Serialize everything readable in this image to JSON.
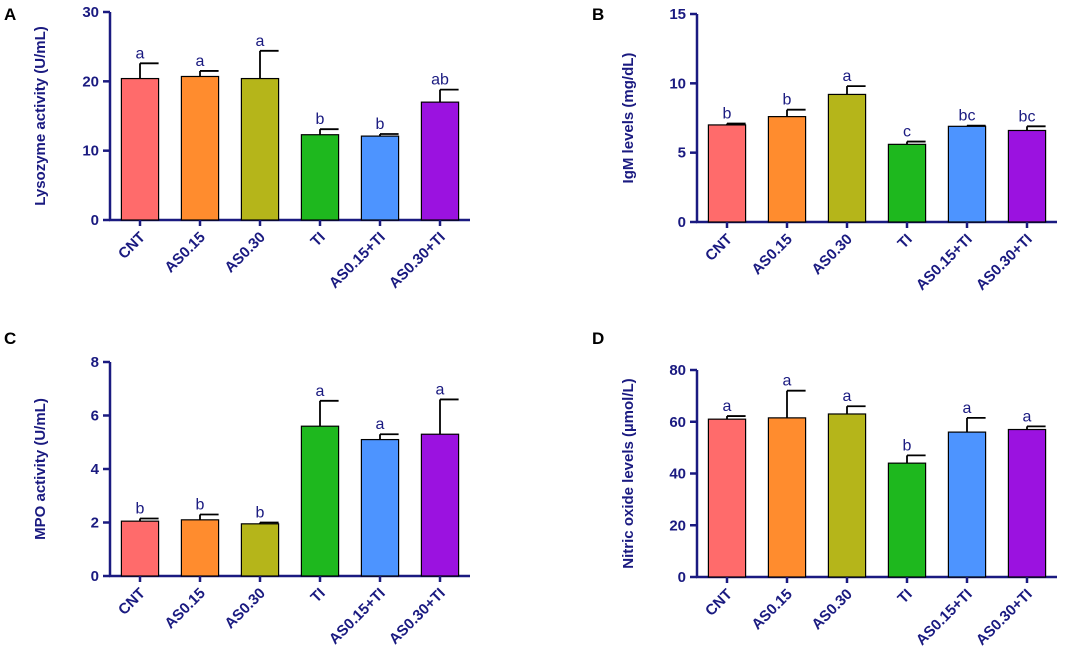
{
  "chart_data": [
    {
      "panel": "A",
      "type": "bar",
      "ylabel": "Lysozyme activity (U/mL)",
      "categories": [
        "CNT",
        "AS0.15",
        "AS0.30",
        "TI",
        "AS0.15+TI",
        "AS0.30+TI"
      ],
      "values": [
        20.4,
        20.7,
        20.4,
        12.3,
        12.1,
        17.0
      ],
      "errors": [
        2.2,
        0.8,
        4.0,
        0.8,
        0.3,
        1.8
      ],
      "letters": [
        "a",
        "a",
        "a",
        "b",
        "b",
        "ab"
      ],
      "ylim": [
        0,
        30
      ],
      "yticks": [
        0,
        10,
        20,
        30
      ]
    },
    {
      "panel": "B",
      "type": "bar",
      "ylabel": "IgM levels (mg/dL)",
      "categories": [
        "CNT",
        "AS0.15",
        "AS0.30",
        "TI",
        "AS0.15+TI",
        "AS0.30+TI"
      ],
      "values": [
        7.0,
        7.6,
        9.2,
        5.6,
        6.9,
        6.6
      ],
      "errors": [
        0.1,
        0.5,
        0.6,
        0.2,
        0.05,
        0.3
      ],
      "letters": [
        "b",
        "b",
        "a",
        "c",
        "bc",
        "bc"
      ],
      "ylim": [
        0,
        15
      ],
      "yticks": [
        0,
        5,
        10,
        15
      ]
    },
    {
      "panel": "C",
      "type": "bar",
      "ylabel": "MPO activity (U/mL)",
      "categories": [
        "CNT",
        "AS0.15",
        "AS0.30",
        "TI",
        "AS0.15+TI",
        "AS0.30+TI"
      ],
      "values": [
        2.05,
        2.1,
        1.95,
        5.6,
        5.1,
        5.3
      ],
      "errors": [
        0.1,
        0.2,
        0.05,
        0.95,
        0.2,
        1.3
      ],
      "letters": [
        "b",
        "b",
        "b",
        "a",
        "a",
        "a"
      ],
      "ylim": [
        0,
        8
      ],
      "yticks": [
        0,
        2,
        4,
        6,
        8
      ]
    },
    {
      "panel": "D",
      "type": "bar",
      "ylabel": "Nitric oxide levels (µmol/L)",
      "categories": [
        "CNT",
        "AS0.15",
        "AS0.30",
        "TI",
        "AS0.15+TI",
        "AS0.30+TI"
      ],
      "values": [
        61,
        61.5,
        63,
        44,
        56,
        57
      ],
      "errors": [
        1.2,
        10.5,
        3.0,
        3.0,
        5.5,
        1.2
      ],
      "letters": [
        "a",
        "a",
        "a",
        "b",
        "a",
        "a"
      ],
      "ylim": [
        0,
        80
      ],
      "yticks": [
        0,
        20,
        40,
        60,
        80
      ]
    }
  ],
  "bar_colors": [
    "#ff6b6b",
    "#ff8c2e",
    "#b5b51a",
    "#1eb81e",
    "#4d94ff",
    "#9b12e0"
  ],
  "axis_color": "#1a1a80"
}
